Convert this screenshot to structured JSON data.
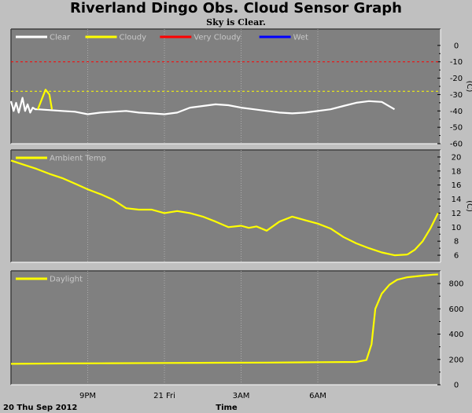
{
  "header": {
    "title": "Riverland Dingo Obs. Cloud Sensor Graph",
    "subtitle": "Sky is Clear."
  },
  "footer": {
    "date_label": "20 Thu Sep 2012",
    "time_label": "Time"
  },
  "x_ticks": [
    "9PM",
    "21 Fri",
    "3AM",
    "6AM"
  ],
  "colors": {
    "bg": "#c0c0c0",
    "panel": "#808080",
    "clear": "#ffffff",
    "cloudy": "#ffff00",
    "very_cloudy": "#ff0000",
    "wet": "#0000ff"
  },
  "chart_data": [
    {
      "type": "line",
      "name": "sky-temperature",
      "ylabel": "(C)",
      "ylim": [
        -60,
        10
      ],
      "yticks": [
        "-60",
        "-50",
        "-40",
        "-30",
        "-20",
        "-10",
        "0"
      ],
      "legend": [
        "Clear",
        "Cloudy",
        "Very Cloudy",
        "Wet"
      ],
      "thresholds": [
        {
          "name": "Cloudy",
          "value": -28,
          "color": "#ffff00"
        },
        {
          "name": "Very Cloudy",
          "value": -10,
          "color": "#ff0000"
        }
      ],
      "series": [
        {
          "name": "Clear",
          "color": "#ffffff",
          "x": [
            18.0,
            18.1,
            18.2,
            18.3,
            18.45,
            18.55,
            18.65,
            18.75,
            18.85,
            18.95,
            19.05,
            19.5,
            20.0,
            20.5,
            21.0,
            21.5,
            22.0,
            22.5,
            23.0,
            23.5,
            24.0,
            24.5,
            25.0,
            25.5,
            26.0,
            26.5,
            27.0,
            27.5,
            28.0,
            28.5,
            29.0,
            29.5,
            30.0,
            30.5,
            31.0,
            31.5,
            32.0,
            32.5,
            33.0
          ],
          "y": [
            -34,
            -40,
            -35,
            -41,
            -32,
            -40,
            -36,
            -41,
            -38,
            -39,
            -39,
            -39.5,
            -40,
            -40.5,
            -42,
            -41,
            -40.5,
            -40,
            -41,
            -41.5,
            -42,
            -41,
            -38,
            -37,
            -36,
            -36.5,
            -38,
            -39,
            -40,
            -41,
            -41.5,
            -41,
            -40,
            -39,
            -37,
            -35,
            -34,
            -34.5,
            -39
          ]
        },
        {
          "name": "Cloudy",
          "color": "#ffff00",
          "x": [
            19.05,
            19.2,
            19.35,
            19.5,
            19.6
          ],
          "y": [
            -39,
            -33,
            -27,
            -30,
            -39
          ]
        }
      ]
    },
    {
      "type": "line",
      "name": "ambient-temperature",
      "ylabel": "(C)",
      "ylim": [
        5,
        21
      ],
      "yticks": [
        "6",
        "8",
        "10",
        "12",
        "14",
        "16",
        "18",
        "20"
      ],
      "legend": [
        "Ambient Temp"
      ],
      "series": [
        {
          "name": "Ambient Temp",
          "color": "#ffff00",
          "x": [
            18.0,
            18.5,
            19.0,
            19.5,
            20.0,
            20.5,
            21.0,
            21.5,
            22.0,
            22.5,
            23.0,
            23.5,
            24.0,
            24.5,
            25.0,
            25.5,
            26.0,
            26.5,
            27.0,
            27.3,
            27.6,
            28.0,
            28.5,
            29.0,
            29.5,
            30.0,
            30.5,
            31.0,
            31.5,
            32.0,
            32.5,
            33.0,
            33.5
          ],
          "y": [
            19.5,
            18.9,
            18.3,
            17.6,
            17.0,
            16.2,
            15.4,
            14.7,
            13.9,
            12.7,
            12.5,
            12.5,
            12.0,
            12.3,
            12.0,
            11.5,
            10.8,
            10.0,
            10.2,
            9.9,
            10.1,
            9.5,
            10.8,
            11.5,
            11.0,
            10.5,
            9.8,
            8.6,
            7.7,
            7.0,
            6.4,
            6.0,
            6.1
          ]
        },
        {
          "name": "Ambient Temp rise",
          "color": "#ffff00",
          "x": [
            33.5,
            33.8,
            34.1,
            34.4,
            34.7
          ],
          "y": [
            6.1,
            6.8,
            8.0,
            9.8,
            12.0
          ]
        }
      ]
    },
    {
      "type": "line",
      "name": "daylight",
      "ylabel": "",
      "ylim": [
        0,
        900
      ],
      "yticks": [
        "0",
        "200",
        "400",
        "600",
        "800"
      ],
      "legend": [
        "Daylight"
      ],
      "series": [
        {
          "name": "Daylight",
          "color": "#ffff00",
          "x": [
            18.0,
            20.0,
            22.0,
            24.0,
            26.0,
            28.0,
            30.0,
            31.5,
            31.9,
            32.1,
            32.25,
            32.5,
            32.8,
            33.1,
            33.5,
            34.0,
            34.5,
            34.7
          ],
          "y": [
            165,
            168,
            170,
            172,
            174,
            175,
            178,
            180,
            195,
            320,
            600,
            720,
            790,
            830,
            850,
            860,
            870,
            872
          ]
        }
      ]
    }
  ]
}
